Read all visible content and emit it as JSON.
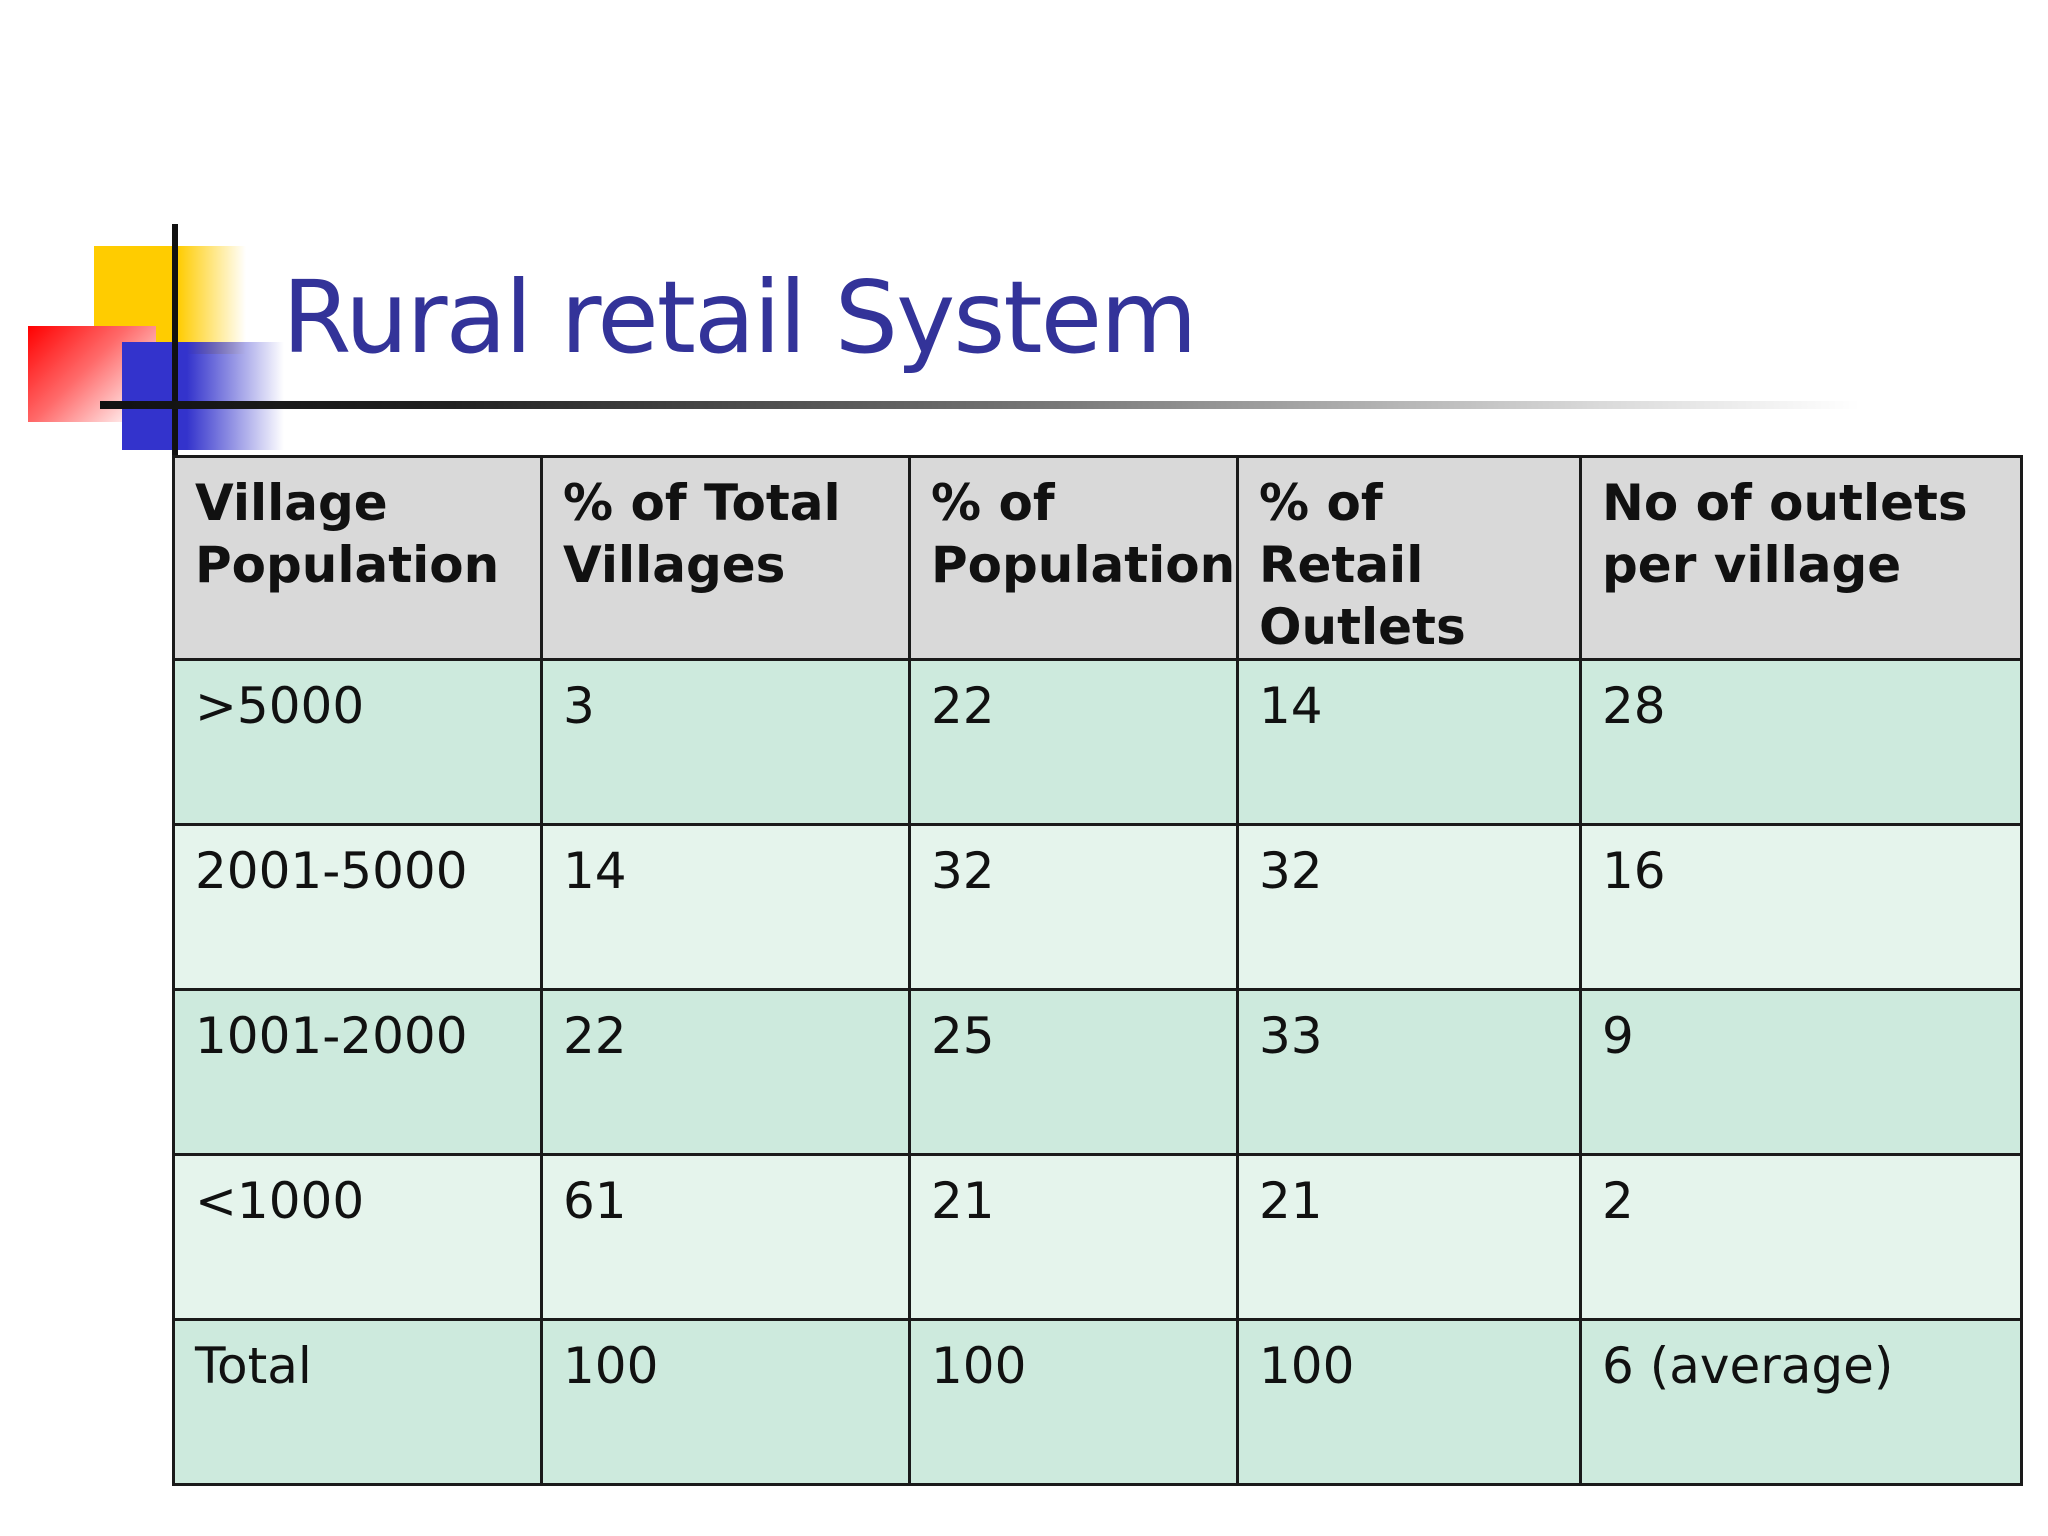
{
  "slide": {
    "title": "Rural retail System"
  },
  "table": {
    "headers": [
      "Village Population",
      "% of Total Villages",
      "% of Population",
      "% of Retail Outlets",
      "No of outlets per village"
    ],
    "rows": [
      [
        ">5000",
        "3",
        "22",
        "14",
        "28"
      ],
      [
        "2001-5000",
        "14",
        "32",
        "32",
        "16"
      ],
      [
        "1001-2000",
        "22",
        "25",
        "33",
        "9"
      ],
      [
        "<1000",
        "61",
        "21",
        "21",
        "2"
      ],
      [
        "Total",
        "100",
        "100",
        "100",
        "6 (average)"
      ]
    ]
  },
  "colors": {
    "title": "#333399",
    "header_bg": "#d9d9d9",
    "row_dark_bg": "#cdeadd",
    "row_light_bg": "#e5f4ec",
    "accent_yellow": "#ffcc00",
    "accent_red": "#ff0000",
    "accent_blue": "#3333cc"
  }
}
